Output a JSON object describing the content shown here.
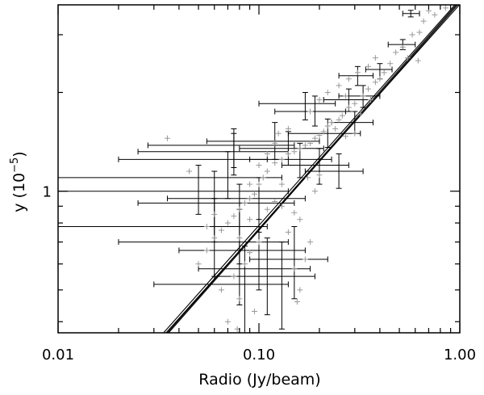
{
  "chart_data": {
    "type": "scatter",
    "title": "",
    "xlabel": "Radio (Jy/beam)",
    "ylabel_prefix": "y (10",
    "ylabel_exp": "−5",
    "ylabel_suffix": ")",
    "x_scale": "log",
    "y_scale": "log",
    "xlim": [
      0.01,
      1.0
    ],
    "ylim": [
      0.37,
      3.7
    ],
    "grid": false,
    "legend": "none",
    "x_ticks": [
      {
        "value": 0.01,
        "label": "0.01"
      },
      {
        "value": 0.1,
        "label": "0.10"
      },
      {
        "value": 1.0,
        "label": "1.00"
      }
    ],
    "y_ticks": [
      {
        "value": 1.0,
        "label": "1"
      }
    ],
    "colors": {
      "points": "#999999",
      "errorbars": "#000000",
      "lines": "#000000"
    },
    "fit_lines": [
      {
        "name": "",
        "points": [
          [
            0.035,
            0.37
          ],
          [
            0.96,
            3.7
          ]
        ]
      },
      {
        "name": "",
        "points": [
          [
            0.0355,
            0.37
          ],
          [
            0.975,
            3.7
          ]
        ]
      },
      {
        "name": "",
        "points": [
          [
            0.0335,
            0.37
          ],
          [
            0.945,
            3.7
          ]
        ]
      },
      {
        "name": "",
        "points": [
          [
            0.0345,
            0.37
          ],
          [
            0.995,
            3.7
          ]
        ]
      }
    ],
    "points": [
      [
        0.7,
        3.55
      ],
      [
        0.75,
        3.45
      ],
      [
        0.66,
        3.3
      ],
      [
        0.85,
        3.62
      ],
      [
        0.63,
        3.05
      ],
      [
        0.58,
        3.0
      ],
      [
        0.52,
        2.75
      ],
      [
        0.48,
        2.65
      ],
      [
        0.55,
        2.55
      ],
      [
        0.62,
        2.5
      ],
      [
        0.45,
        2.45
      ],
      [
        0.42,
        2.3
      ],
      [
        0.4,
        2.2
      ],
      [
        0.38,
        2.15
      ],
      [
        0.35,
        2.05
      ],
      [
        0.33,
        1.95
      ],
      [
        0.36,
        1.9
      ],
      [
        0.3,
        1.85
      ],
      [
        0.28,
        1.8
      ],
      [
        0.32,
        1.72
      ],
      [
        0.26,
        1.7
      ],
      [
        0.25,
        1.65
      ],
      [
        0.23,
        1.62
      ],
      [
        0.22,
        1.58
      ],
      [
        0.24,
        1.55
      ],
      [
        0.21,
        1.52
      ],
      [
        0.2,
        1.48
      ],
      [
        0.27,
        1.47
      ],
      [
        0.19,
        1.45
      ],
      [
        0.18,
        1.4
      ],
      [
        0.17,
        1.38
      ],
      [
        0.3,
        1.5
      ],
      [
        0.16,
        1.35
      ],
      [
        0.15,
        1.32
      ],
      [
        0.14,
        1.3
      ],
      [
        0.13,
        1.25
      ],
      [
        0.12,
        1.22
      ],
      [
        0.11,
        1.15
      ],
      [
        0.105,
        1.1
      ],
      [
        0.1,
        1.05
      ],
      [
        0.095,
        0.98
      ],
      [
        0.09,
        0.95
      ],
      [
        0.085,
        0.92
      ],
      [
        0.08,
        0.88
      ],
      [
        0.075,
        0.84
      ],
      [
        0.07,
        0.8
      ],
      [
        0.065,
        0.76
      ],
      [
        0.06,
        0.72
      ],
      [
        0.055,
        0.66
      ],
      [
        0.05,
        0.6
      ],
      [
        0.12,
        0.93
      ],
      [
        0.13,
        0.9
      ],
      [
        0.15,
        0.86
      ],
      [
        0.16,
        0.82
      ],
      [
        0.14,
        0.75
      ],
      [
        0.18,
        0.7
      ],
      [
        0.17,
        0.62
      ],
      [
        0.15,
        0.58
      ],
      [
        0.16,
        0.5
      ],
      [
        0.155,
        0.46
      ],
      [
        0.085,
        0.6
      ],
      [
        0.09,
        0.65
      ],
      [
        0.075,
        0.55
      ],
      [
        0.065,
        0.5
      ],
      [
        0.08,
        0.47
      ],
      [
        0.07,
        0.4
      ],
      [
        0.078,
        0.38
      ],
      [
        0.095,
        0.43
      ],
      [
        0.035,
        1.45
      ],
      [
        0.045,
        1.15
      ],
      [
        0.2,
        1.9
      ],
      [
        0.18,
        1.75
      ],
      [
        0.22,
        2.0
      ],
      [
        0.25,
        2.1
      ],
      [
        0.28,
        2.2
      ],
      [
        0.35,
        2.4
      ],
      [
        0.31,
        2.3
      ],
      [
        0.1,
        1.2
      ],
      [
        0.11,
        1.3
      ],
      [
        0.12,
        1.4
      ],
      [
        0.09,
        1.05
      ],
      [
        0.125,
        1.5
      ],
      [
        0.14,
        1.55
      ],
      [
        0.27,
        1.95
      ],
      [
        0.38,
        2.55
      ],
      [
        0.19,
        1.0
      ],
      [
        0.2,
        1.12
      ],
      [
        0.175,
        1.1
      ],
      [
        0.13,
        1.05
      ],
      [
        0.11,
        0.88
      ],
      [
        0.09,
        0.82
      ],
      [
        0.08,
        0.72
      ],
      [
        0.06,
        0.85
      ],
      [
        0.055,
        0.78
      ],
      [
        0.1,
        0.7
      ]
    ],
    "error_bar_points": [
      {
        "x": 0.57,
        "y": 3.48,
        "xerr": [
          0.52,
          0.63
        ],
        "yerr": [
          3.4,
          3.56
        ]
      },
      {
        "x": 0.52,
        "y": 2.8,
        "xerr": [
          0.44,
          0.6
        ],
        "yerr": [
          2.7,
          2.9
        ]
      },
      {
        "x": 0.4,
        "y": 2.35,
        "xerr": [
          0.34,
          0.46
        ],
        "yerr": [
          2.2,
          2.45
        ]
      },
      {
        "x": 0.31,
        "y": 2.25,
        "xerr": [
          0.25,
          0.37
        ],
        "yerr": [
          2.1,
          2.4
        ]
      },
      {
        "x": 0.33,
        "y": 1.95,
        "xerr": [
          0.25,
          0.4
        ],
        "yerr": [
          1.8,
          2.1
        ]
      },
      {
        "x": 0.28,
        "y": 1.9,
        "xerr": [
          0.21,
          0.36
        ],
        "yerr": [
          1.75,
          2.05
        ]
      },
      {
        "x": 0.17,
        "y": 1.85,
        "xerr": [
          0.1,
          0.24
        ],
        "yerr": [
          1.65,
          2.0
        ]
      },
      {
        "x": 0.19,
        "y": 1.75,
        "xerr": [
          0.12,
          0.27
        ],
        "yerr": [
          1.58,
          1.95
        ]
      },
      {
        "x": 0.3,
        "y": 1.62,
        "xerr": [
          0.23,
          0.37
        ],
        "yerr": [
          1.5,
          1.75
        ]
      },
      {
        "x": 0.22,
        "y": 1.5,
        "xerr": [
          0.14,
          0.32
        ],
        "yerr": [
          1.36,
          1.66
        ]
      },
      {
        "x": 0.12,
        "y": 1.42,
        "xerr": [
          0.055,
          0.2
        ],
        "yerr": [
          1.25,
          1.62
        ]
      },
      {
        "x": 0.075,
        "y": 1.38,
        "xerr": [
          0.028,
          0.15
        ],
        "yerr": [
          1.18,
          1.55
        ]
      },
      {
        "x": 0.075,
        "y": 1.32,
        "xerr": [
          0.025,
          0.14
        ],
        "yerr": [
          1.12,
          1.5
        ]
      },
      {
        "x": 0.14,
        "y": 1.35,
        "xerr": [
          0.08,
          0.21
        ],
        "yerr": [
          1.2,
          1.52
        ]
      },
      {
        "x": 0.16,
        "y": 1.25,
        "xerr": [
          0.09,
          0.23
        ],
        "yerr": [
          1.1,
          1.4
        ]
      },
      {
        "x": 0.2,
        "y": 1.2,
        "xerr": [
          0.13,
          0.28
        ],
        "yerr": [
          1.05,
          1.35
        ]
      },
      {
        "x": 0.25,
        "y": 1.15,
        "xerr": [
          0.17,
          0.33
        ],
        "yerr": [
          1.02,
          1.3
        ]
      },
      {
        "x": 0.07,
        "y": 1.25,
        "xerr": [
          0.02,
          0.11
        ],
        "yerr": [
          0.95,
          1.32
        ]
      },
      {
        "x": 0.05,
        "y": 1.1,
        "xerr": [
          0.01,
          0.13
        ],
        "yerr": [
          0.85,
          1.2
        ]
      },
      {
        "x": 0.06,
        "y": 1.0,
        "xerr": [
          0.01,
          0.14
        ],
        "yerr": [
          0.7,
          1.15
        ]
      },
      {
        "x": 0.1,
        "y": 0.95,
        "xerr": [
          0.035,
          0.17
        ],
        "yerr": [
          0.75,
          1.1
        ]
      },
      {
        "x": 0.08,
        "y": 0.92,
        "xerr": [
          0.025,
          0.15
        ],
        "yerr": [
          0.6,
          1.05
        ]
      },
      {
        "x": 0.06,
        "y": 0.78,
        "xerr": [
          0.01,
          0.11
        ],
        "yerr": [
          0.55,
          0.95
        ]
      },
      {
        "x": 0.08,
        "y": 0.7,
        "xerr": [
          0.02,
          0.14
        ],
        "yerr": [
          0.45,
          0.88
        ]
      },
      {
        "x": 0.1,
        "y": 0.66,
        "xerr": [
          0.04,
          0.17
        ],
        "yerr": [
          0.5,
          0.82
        ]
      },
      {
        "x": 0.15,
        "y": 0.62,
        "xerr": [
          0.09,
          0.22
        ],
        "yerr": [
          0.47,
          0.78
        ]
      },
      {
        "x": 0.11,
        "y": 0.58,
        "xerr": [
          0.05,
          0.18
        ],
        "yerr": [
          0.42,
          0.72
        ]
      },
      {
        "x": 0.13,
        "y": 0.55,
        "xerr": [
          0.06,
          0.19
        ],
        "yerr": [
          0.38,
          0.7
        ]
      },
      {
        "x": 0.085,
        "y": 0.52,
        "xerr": [
          0.03,
          0.14
        ],
        "yerr": [
          0.37,
          0.68
        ]
      }
    ]
  }
}
